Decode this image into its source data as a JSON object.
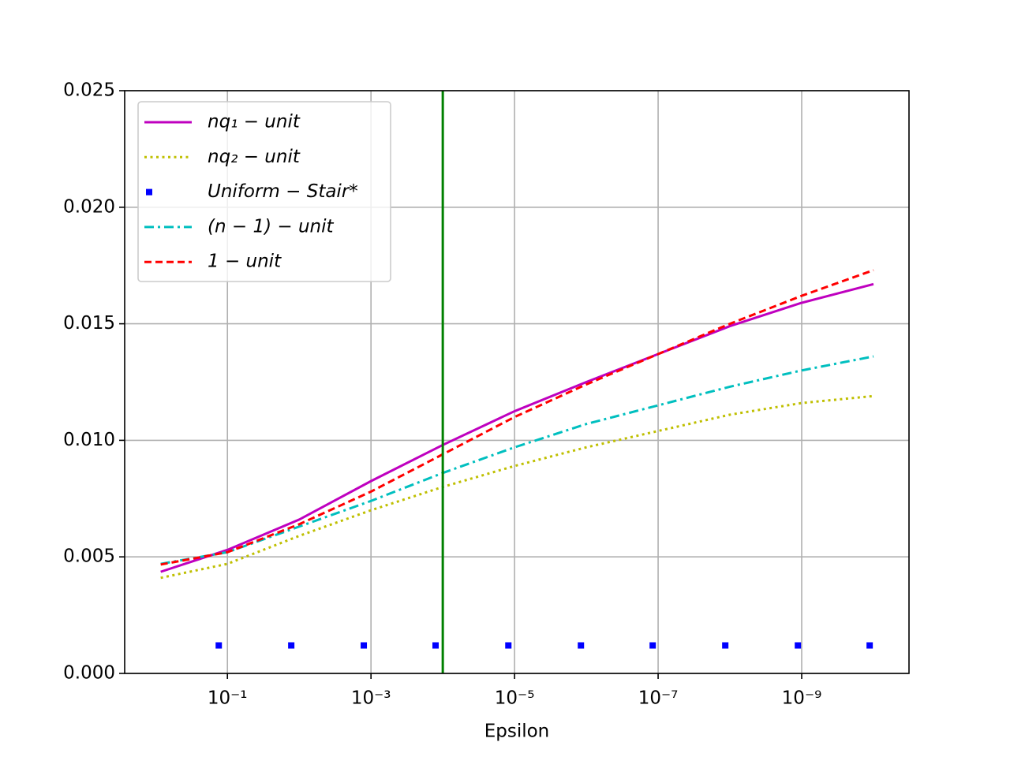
{
  "chart_data": {
    "type": "line",
    "xlabel": "Epsilon",
    "xscale": "log",
    "xlim": [
      2.7,
      3.2e-11
    ],
    "ylim": [
      0,
      0.025
    ],
    "xticks": [
      {
        "value": 0.1,
        "label": "10⁻¹"
      },
      {
        "value": 0.001,
        "label": "10⁻³"
      },
      {
        "value": 1e-05,
        "label": "10⁻⁵"
      },
      {
        "value": 1e-07,
        "label": "10⁻⁷"
      },
      {
        "value": 1e-09,
        "label": "10⁻⁹"
      }
    ],
    "yticks": [
      {
        "value": 0,
        "label": "0.000"
      },
      {
        "value": 0.005,
        "label": "0.005"
      },
      {
        "value": 0.01,
        "label": "0.010"
      },
      {
        "value": 0.015,
        "label": "0.015"
      },
      {
        "value": 0.02,
        "label": "0.020"
      },
      {
        "value": 0.025,
        "label": "0.025"
      }
    ],
    "grid": true,
    "legend": "upper left",
    "vline": {
      "x": 0.0001,
      "color": "#008000"
    },
    "series": [
      {
        "name": "nq₁ − unit",
        "color": "#bf00bf",
        "style": "solid",
        "x": [
          0.85,
          0.1,
          0.01,
          0.001,
          0.0001,
          1e-05,
          1e-06,
          1e-07,
          1e-08,
          1e-09,
          1e-10
        ],
        "values": [
          0.00436,
          0.0053,
          0.0066,
          0.00825,
          0.0098,
          0.01125,
          0.0125,
          0.0137,
          0.0149,
          0.0159,
          0.0167
        ]
      },
      {
        "name": "nq₂ − unit",
        "color": "#bfbf00",
        "style": "dotted",
        "x": [
          0.85,
          0.1,
          0.01,
          0.001,
          0.0001,
          1e-05,
          1e-06,
          1e-07,
          1e-08,
          1e-09,
          1e-10
        ],
        "values": [
          0.0041,
          0.0047,
          0.0059,
          0.007,
          0.008,
          0.0089,
          0.0097,
          0.0104,
          0.0111,
          0.0116,
          0.0119
        ]
      },
      {
        "name": "Uniform − Stair*",
        "color": "#0000ff",
        "style": "markers",
        "x": [
          0.132,
          0.0129,
          0.00126,
          0.000126,
          1.22e-05,
          1.19e-06,
          1.19e-07,
          1.16e-08,
          1.13e-09,
          1.13e-10
        ],
        "values": [
          0.0012,
          0.0012,
          0.0012,
          0.0012,
          0.0012,
          0.0012,
          0.0012,
          0.0012,
          0.0012,
          0.0012
        ]
      },
      {
        "name": "(n − 1) − unit",
        "color": "#00bfbf",
        "style": "dashdot",
        "x": [
          0.85,
          0.1,
          0.01,
          0.001,
          0.0001,
          1e-05,
          1e-06,
          1e-07,
          1e-08,
          1e-09,
          1e-10
        ],
        "values": [
          0.0047,
          0.0052,
          0.0063,
          0.0074,
          0.0086,
          0.0097,
          0.0107,
          0.0115,
          0.0123,
          0.013,
          0.0136
        ]
      },
      {
        "name": "1 − unit",
        "color": "#ff0000",
        "style": "dashed",
        "x": [
          0.85,
          0.1,
          0.01,
          0.001,
          0.0001,
          1e-05,
          1e-06,
          1e-07,
          1e-08,
          1e-09,
          1e-10
        ],
        "values": [
          0.00467,
          0.0052,
          0.0064,
          0.0078,
          0.0094,
          0.011,
          0.0124,
          0.0137,
          0.015,
          0.0162,
          0.0173
        ]
      }
    ]
  }
}
